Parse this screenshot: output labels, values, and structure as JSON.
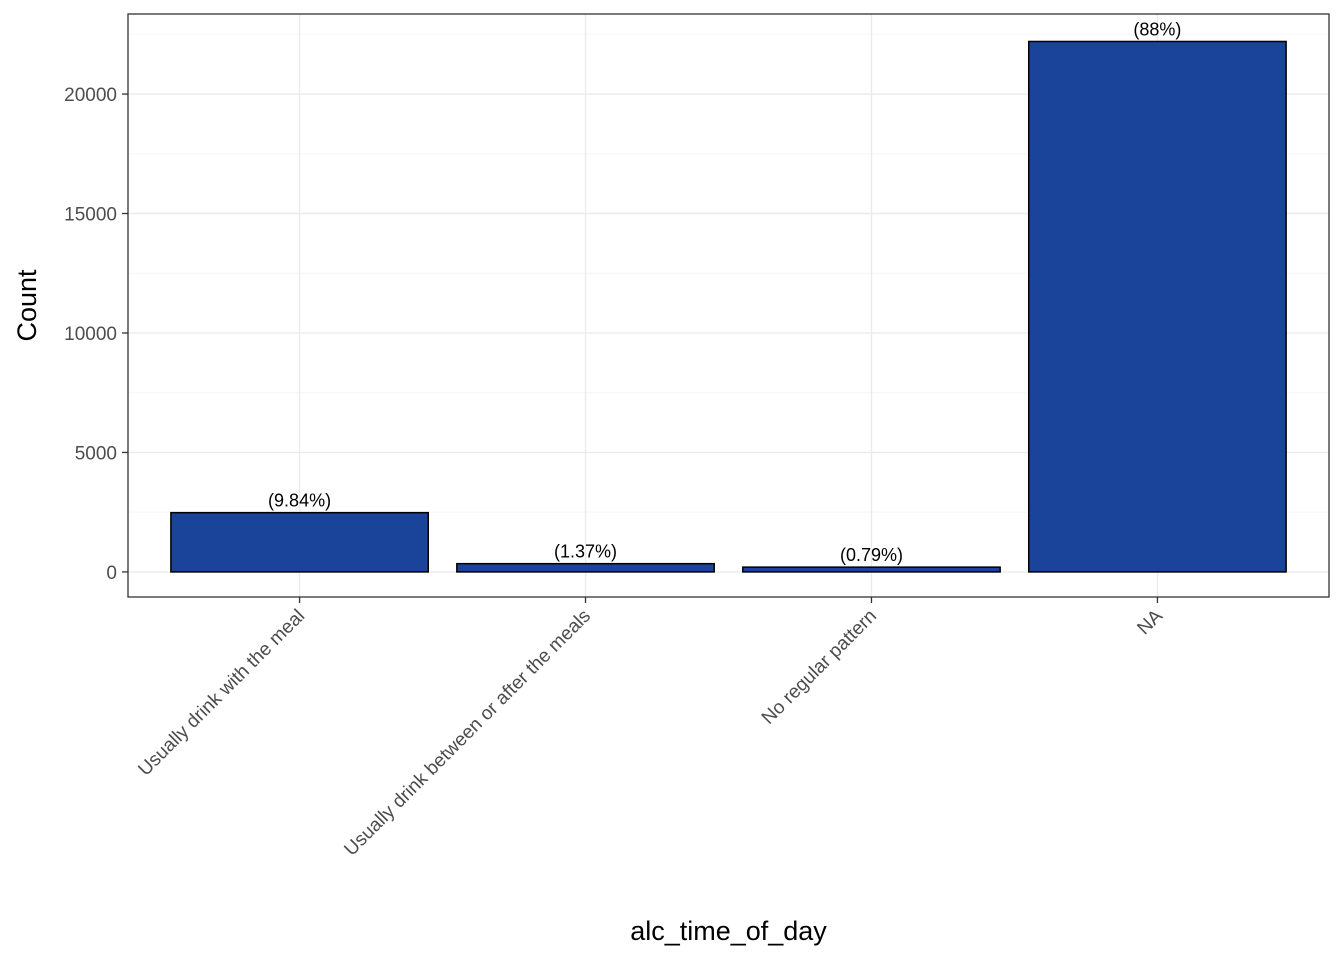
{
  "chart_data": {
    "type": "bar",
    "categories": [
      "Usually drink with the meal",
      "Usually drink between or after the meals",
      "No regular pattern",
      "NA"
    ],
    "values": [
      2480,
      345,
      200,
      22200
    ],
    "labels": [
      "(9.84%)",
      "(1.37%)",
      "(0.79%)",
      "(88%)"
    ],
    "xlabel": "alc_time_of_day",
    "ylabel": "Count",
    "ylim": [
      -1050,
      23350
    ],
    "yticks": [
      0,
      5000,
      10000,
      15000,
      20000
    ],
    "grid": true,
    "colors": {
      "bar_fill": "#1a4499",
      "bar_stroke": "#000000",
      "grid_major": "#ebebeb",
      "grid_minor": "#f5f5f5",
      "panel_border": "#333333"
    }
  }
}
